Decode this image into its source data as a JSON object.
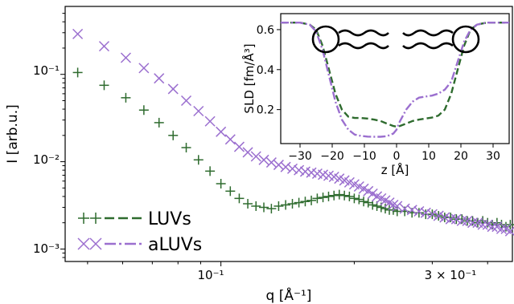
{
  "chart_data": [
    {
      "type": "scatter",
      "xlabel": "q [Å⁻¹]",
      "ylabel": "I [arb.u.]",
      "xscale": "log",
      "yscale": "log",
      "xlim": [
        0.0445,
        0.455
      ],
      "ylim": [
        0.00072,
        0.6
      ],
      "x_tick_labels": [
        {
          "value": 0.1,
          "label": "10⁻¹"
        },
        {
          "value": 0.3,
          "label": "3 × 10⁻¹"
        }
      ],
      "y_tick_labels": [
        {
          "value": 0.001,
          "label": "10⁻³"
        },
        {
          "value": 0.01,
          "label": "10⁻²"
        },
        {
          "value": 0.1,
          "label": "10⁻¹"
        }
      ],
      "legend_placement": "lower-left",
      "series": [
        {
          "name": "LUVs",
          "marker": "plus",
          "color": "#2e6b2e",
          "x": [
            0.0475,
            0.0545,
            0.061,
            0.067,
            0.0725,
            0.078,
            0.0835,
            0.089,
            0.0945,
            0.1,
            0.105,
            0.11,
            0.115,
            0.12,
            0.125,
            0.13,
            0.135,
            0.14,
            0.145,
            0.15,
            0.155,
            0.16,
            0.165,
            0.17,
            0.175,
            0.18,
            0.185,
            0.19,
            0.195,
            0.2,
            0.205,
            0.21,
            0.215,
            0.22,
            0.225,
            0.23,
            0.235,
            0.24,
            0.245,
            0.25,
            0.26,
            0.27,
            0.28,
            0.29,
            0.3,
            0.31,
            0.32,
            0.33,
            0.34,
            0.35,
            0.36,
            0.37,
            0.38,
            0.39,
            0.4,
            0.41,
            0.42,
            0.43,
            0.44,
            0.45
          ],
          "y": [
            0.105,
            0.075,
            0.054,
            0.039,
            0.028,
            0.02,
            0.0145,
            0.0105,
            0.0078,
            0.0056,
            0.0046,
            0.0038,
            0.0033,
            0.0031,
            0.003,
            0.0029,
            0.0031,
            0.0032,
            0.0033,
            0.0034,
            0.0035,
            0.0036,
            0.0038,
            0.0039,
            0.004,
            0.0041,
            0.0042,
            0.0041,
            0.004,
            0.0038,
            0.0037,
            0.0035,
            0.0034,
            0.0032,
            0.0031,
            0.003,
            0.0029,
            0.0028,
            0.0028,
            0.0027,
            0.0027,
            0.0026,
            0.0026,
            0.0025,
            0.0025,
            0.0024,
            0.0023,
            0.0023,
            0.0022,
            0.0022,
            0.0021,
            0.0021,
            0.002,
            0.0021,
            0.002,
            0.0019,
            0.002,
            0.0019,
            0.0018,
            0.0019
          ]
        },
        {
          "name": "aLUVs",
          "marker": "x",
          "color": "#9b6fcf",
          "x": [
            0.0475,
            0.0545,
            0.061,
            0.067,
            0.0725,
            0.078,
            0.0835,
            0.089,
            0.0945,
            0.1,
            0.105,
            0.11,
            0.115,
            0.12,
            0.125,
            0.13,
            0.135,
            0.14,
            0.145,
            0.15,
            0.155,
            0.16,
            0.165,
            0.17,
            0.175,
            0.18,
            0.185,
            0.19,
            0.195,
            0.2,
            0.205,
            0.21,
            0.215,
            0.22,
            0.225,
            0.23,
            0.235,
            0.24,
            0.245,
            0.25,
            0.26,
            0.27,
            0.28,
            0.29,
            0.3,
            0.31,
            0.32,
            0.33,
            0.34,
            0.35,
            0.36,
            0.37,
            0.38,
            0.39,
            0.4,
            0.41,
            0.42,
            0.43,
            0.44,
            0.45
          ],
          "y": [
            0.29,
            0.21,
            0.155,
            0.118,
            0.09,
            0.068,
            0.05,
            0.038,
            0.029,
            0.022,
            0.018,
            0.0148,
            0.0128,
            0.0115,
            0.0105,
            0.0098,
            0.0092,
            0.0087,
            0.0083,
            0.008,
            0.0077,
            0.0075,
            0.0073,
            0.0071,
            0.0069,
            0.0067,
            0.0064,
            0.0061,
            0.0058,
            0.0055,
            0.0052,
            0.0049,
            0.0046,
            0.0043,
            0.004,
            0.0038,
            0.0036,
            0.0034,
            0.0032,
            0.0031,
            0.0029,
            0.0028,
            0.0027,
            0.0026,
            0.0025,
            0.0024,
            0.0023,
            0.0022,
            0.0022,
            0.0021,
            0.0021,
            0.002,
            0.002,
            0.0019,
            0.0019,
            0.0018,
            0.0018,
            0.0017,
            0.0017,
            0.0016
          ]
        }
      ]
    },
    {
      "type": "line",
      "xlabel": "z [Å]",
      "ylabel": "SLD [fm/Å³]",
      "xlim": [
        -36,
        35
      ],
      "ylim": [
        0.03,
        0.68
      ],
      "x_ticks": [
        -30,
        -20,
        -10,
        0,
        10,
        20,
        30
      ],
      "x_tick_labels": [
        "−30",
        "−20",
        "−10",
        "0",
        "10",
        "20",
        "30"
      ],
      "y_ticks": [
        0.2,
        0.4,
        0.6
      ],
      "y_tick_labels": [
        "0.2",
        "0.4",
        "0.6"
      ],
      "series": [
        {
          "name": "LUVs",
          "style": "dashed",
          "color": "#2e6b2e",
          "x": [
            -36,
            -30,
            -27,
            -25,
            -23,
            -21,
            -19,
            -17,
            -15,
            -13,
            -11,
            -9,
            -7,
            -5,
            -3,
            -1,
            0,
            1,
            3,
            5,
            7,
            9,
            11,
            13,
            15,
            17,
            19,
            21,
            23,
            25,
            28,
            30,
            35
          ],
          "y": [
            0.635,
            0.635,
            0.625,
            0.6,
            0.52,
            0.4,
            0.28,
            0.2,
            0.165,
            0.158,
            0.158,
            0.155,
            0.15,
            0.143,
            0.13,
            0.118,
            0.115,
            0.118,
            0.13,
            0.143,
            0.15,
            0.155,
            0.16,
            0.17,
            0.2,
            0.28,
            0.4,
            0.52,
            0.6,
            0.625,
            0.635,
            0.635,
            0.635
          ]
        },
        {
          "name": "aLUVs",
          "style": "dashdot",
          "color": "#9b6fcf",
          "x": [
            -36,
            -30,
            -27,
            -25,
            -23,
            -21,
            -19,
            -17,
            -15,
            -13,
            -11,
            -9,
            -7,
            -5,
            -3,
            -1,
            0,
            1,
            3,
            5,
            7,
            9,
            11,
            13,
            15,
            17,
            19,
            21,
            23,
            25,
            28,
            30,
            35
          ],
          "y": [
            0.635,
            0.635,
            0.625,
            0.59,
            0.5,
            0.37,
            0.24,
            0.15,
            0.1,
            0.075,
            0.068,
            0.065,
            0.064,
            0.064,
            0.067,
            0.08,
            0.1,
            0.14,
            0.2,
            0.24,
            0.26,
            0.265,
            0.27,
            0.28,
            0.3,
            0.34,
            0.44,
            0.54,
            0.6,
            0.625,
            0.635,
            0.635,
            0.635
          ]
        }
      ]
    }
  ]
}
